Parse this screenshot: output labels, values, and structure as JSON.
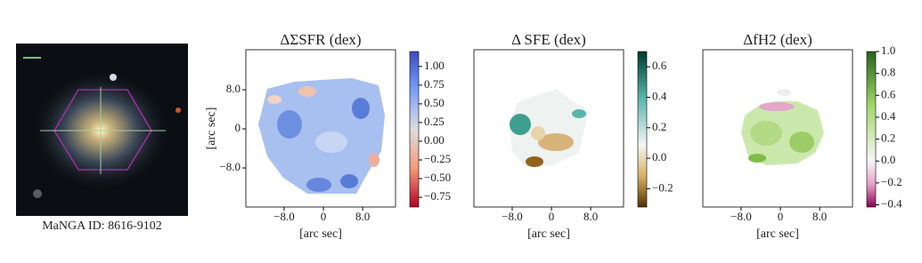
{
  "chart_data": [
    {
      "type": "image",
      "caption": "MaNGA ID: 8616-9102"
    },
    {
      "type": "heatmap",
      "title": "ΔΣSFR (dex)",
      "xlabel": "[arc sec]",
      "ylabel": "[arc sec]",
      "xlim": [
        -15.8,
        14.7
      ],
      "ylim": [
        -16,
        16.2
      ],
      "xticks": [
        {
          "value": -8,
          "label": "−8.0"
        },
        0,
        {
          "value": 8,
          "label": "8.0"
        }
      ],
      "yticks": [
        {
          "value": 8,
          "label": "8.0"
        },
        0,
        {
          "value": -8,
          "label": "−8.0"
        }
      ],
      "colormap": "coolwarm_r",
      "clim": [
        -0.88,
        1.2
      ],
      "cticks": [
        {
          "value": 1,
          "label": "1.00"
        },
        {
          "value": 0.75,
          "label": "0.75"
        },
        {
          "value": 0.5,
          "label": "0.50"
        },
        {
          "value": 0.25,
          "label": "0.25"
        },
        {
          "value": 0,
          "label": "0.00"
        },
        {
          "value": -0.25,
          "label": "−0.25"
        },
        {
          "value": -0.5,
          "label": "−0.50"
        },
        {
          "value": -0.75,
          "label": "−0.75"
        }
      ]
    },
    {
      "type": "heatmap",
      "title": "Δ SFE (dex)",
      "xlabel": "[arc sec]",
      "xlim": [
        -15.8,
        14.7
      ],
      "ylim": [
        -16,
        16.2
      ],
      "xticks": [
        {
          "value": -8,
          "label": "−8.0"
        },
        0,
        {
          "value": 8,
          "label": "8.0"
        }
      ],
      "colormap": "BrBG",
      "clim": [
        -0.32,
        0.7
      ],
      "cticks": [
        {
          "value": 0.6,
          "label": "0.6"
        },
        {
          "value": 0.4,
          "label": "0.4"
        },
        {
          "value": 0.2,
          "label": "0.2"
        },
        {
          "value": 0,
          "label": "0.0"
        },
        {
          "value": -0.2,
          "label": "−0.2"
        }
      ]
    },
    {
      "type": "heatmap",
      "title": "ΔfH2 (dex)",
      "xlabel": "[arc sec]",
      "xlim": [
        -15.8,
        14.7
      ],
      "ylim": [
        -16,
        16.2
      ],
      "xticks": [
        {
          "value": -8,
          "label": "−8.0"
        },
        0,
        {
          "value": 8,
          "label": "8.0"
        }
      ],
      "colormap": "PiYG",
      "clim": [
        -0.42,
        1.0
      ],
      "cticks": [
        {
          "value": 1,
          "label": "1.0"
        },
        {
          "value": 0.8,
          "label": "0.8"
        },
        {
          "value": 0.6,
          "label": "0.6"
        },
        {
          "value": 0.4,
          "label": "0.4"
        },
        {
          "value": 0.2,
          "label": "0.2"
        },
        {
          "value": 0,
          "label": "0.0"
        },
        {
          "value": -0.2,
          "label": "−0.2"
        },
        {
          "value": -0.4,
          "label": "−0.4"
        }
      ]
    }
  ]
}
